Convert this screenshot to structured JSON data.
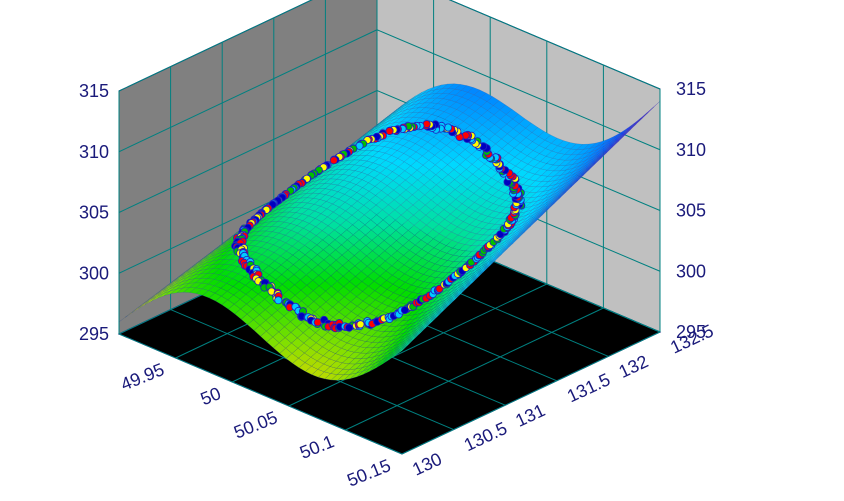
{
  "chart_data": {
    "type": "surface3d",
    "title": "",
    "xlabel": "",
    "ylabel": "",
    "zlabel": "",
    "x_axis": {
      "range": [
        49.9,
        50.15
      ],
      "ticks": [
        "49.95",
        "50",
        "50.05",
        "50.1",
        "50.15"
      ],
      "tick_values": [
        49.95,
        50,
        50.05,
        50.1,
        50.15
      ]
    },
    "y_axis": {
      "range": [
        130,
        132.5
      ],
      "ticks": [
        "130",
        "130.5",
        "131",
        "131.5",
        "132",
        "132.5"
      ],
      "tick_values": [
        130,
        130.5,
        131,
        131.5,
        132,
        132.5
      ]
    },
    "z_axis": {
      "range": [
        295,
        315
      ],
      "ticks": [
        "295",
        "300",
        "305",
        "310",
        "315"
      ],
      "tick_values": [
        295,
        300,
        305,
        310,
        315
      ]
    },
    "surface": {
      "function": "z = 296 + 7.5*(x-49.9)/0.25 + 6*(y-130)/2.5 + 4.5*((x-49.9)/0.25)*((y-130)/2.5) + 3*sin(2*pi*(x-49.9)/0.25)",
      "colormap": [
        "#ff8c00",
        "#ffd400",
        "#80e000",
        "#00dd00",
        "#00e0a0",
        "#00d8ff",
        "#0090ff",
        "#1040ff",
        "#7000ff",
        "#ff00ff"
      ],
      "grid": true
    },
    "scatter": {
      "description": "closed loop of observation points lying on the surface",
      "marker_colors": [
        "#ff0000",
        "#00ccff",
        "#00c000",
        "#ffff00",
        "#0000c0"
      ],
      "marker_outline": "#2020c0"
    },
    "walls": {
      "back_color": "#c0c0c0",
      "left_color": "#808080",
      "floor_color": "#000000",
      "grid_color": "#008080"
    }
  }
}
